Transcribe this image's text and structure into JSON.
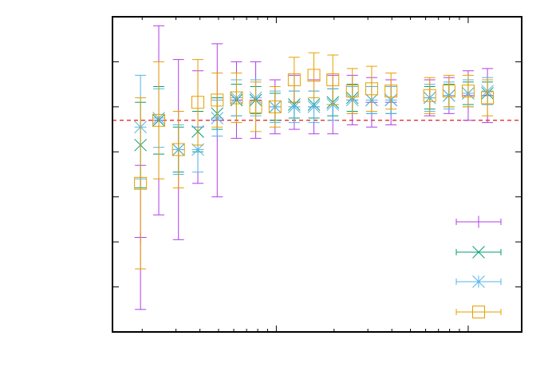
{
  "chart_data": {
    "type": "scatter",
    "title": "",
    "xlabel": "",
    "ylabel": "",
    "xscale": "log",
    "xlim": [
      1.4,
      190
    ],
    "ylim": [
      0,
      7
    ],
    "grid": false,
    "legend": {
      "placement": "bottom-right",
      "show_labels": false
    },
    "reference_line": {
      "y": 4.7,
      "color": "#e41a1c",
      "style": "dashed"
    },
    "series": [
      {
        "marker": "plus",
        "color": "#b03ee8",
        "points": [
          {
            "x": 1.96,
            "y": 2.1,
            "err": 1.6
          },
          {
            "x": 2.44,
            "y": 4.7,
            "err": 2.1
          },
          {
            "x": 3.09,
            "y": 4.05,
            "err": 2.0
          },
          {
            "x": 3.9,
            "y": 4.55,
            "err": 1.25
          },
          {
            "x": 4.92,
            "y": 4.7,
            "err": 1.7
          },
          {
            "x": 6.2,
            "y": 5.15,
            "err": 0.85
          },
          {
            "x": 7.81,
            "y": 5.15,
            "err": 0.85
          },
          {
            "x": 9.85,
            "y": 5.0,
            "err": 0.6
          },
          {
            "x": 12.4,
            "y": 5.1,
            "err": 0.6
          },
          {
            "x": 15.7,
            "y": 5.0,
            "err": 0.6
          },
          {
            "x": 19.7,
            "y": 5.05,
            "err": 0.65
          },
          {
            "x": 24.9,
            "y": 5.15,
            "err": 0.55
          },
          {
            "x": 31.4,
            "y": 5.1,
            "err": 0.55
          },
          {
            "x": 39.6,
            "y": 5.1,
            "err": 0.5
          },
          {
            "x": 63.0,
            "y": 5.2,
            "err": 0.4
          },
          {
            "x": 79.4,
            "y": 5.25,
            "err": 0.4
          },
          {
            "x": 100.0,
            "y": 5.25,
            "err": 0.55
          },
          {
            "x": 126.0,
            "y": 5.25,
            "err": 0.6
          }
        ]
      },
      {
        "marker": "x",
        "color": "#009e73",
        "points": [
          {
            "x": 1.96,
            "y": 4.15,
            "err": 0.95
          },
          {
            "x": 2.44,
            "y": 4.7,
            "err": 0.75
          },
          {
            "x": 3.09,
            "y": 4.05,
            "err": 0.5
          },
          {
            "x": 3.9,
            "y": 4.45,
            "err": 0.45
          },
          {
            "x": 4.92,
            "y": 4.85,
            "err": 0.35
          },
          {
            "x": 6.2,
            "y": 5.15,
            "err": 0.35
          },
          {
            "x": 7.81,
            "y": 5.15,
            "err": 0.3
          },
          {
            "x": 9.85,
            "y": 5.0,
            "err": 0.3
          },
          {
            "x": 12.4,
            "y": 5.05,
            "err": 0.3
          },
          {
            "x": 15.7,
            "y": 5.05,
            "err": 0.3
          },
          {
            "x": 19.7,
            "y": 5.1,
            "err": 0.3
          },
          {
            "x": 24.9,
            "y": 5.2,
            "err": 0.3
          },
          {
            "x": 31.4,
            "y": 5.15,
            "err": 0.3
          },
          {
            "x": 39.6,
            "y": 5.15,
            "err": 0.3
          },
          {
            "x": 63.0,
            "y": 5.2,
            "err": 0.25
          },
          {
            "x": 79.4,
            "y": 5.25,
            "err": 0.25
          },
          {
            "x": 100.0,
            "y": 5.3,
            "err": 0.25
          },
          {
            "x": 126.0,
            "y": 5.3,
            "err": 0.25
          }
        ]
      },
      {
        "marker": "star",
        "color": "#56b4e9",
        "points": [
          {
            "x": 1.96,
            "y": 4.55,
            "err": 1.15
          },
          {
            "x": 2.44,
            "y": 4.75,
            "err": 0.65
          },
          {
            "x": 3.09,
            "y": 4.05,
            "err": 0.55
          },
          {
            "x": 3.9,
            "y": 4.05,
            "err": 0.5
          },
          {
            "x": 4.92,
            "y": 4.75,
            "err": 0.4
          },
          {
            "x": 6.2,
            "y": 5.2,
            "err": 0.4
          },
          {
            "x": 7.81,
            "y": 5.2,
            "err": 0.4
          },
          {
            "x": 9.85,
            "y": 5.0,
            "err": 0.35
          },
          {
            "x": 12.4,
            "y": 5.0,
            "err": 0.35
          },
          {
            "x": 15.7,
            "y": 5.0,
            "err": 0.35
          },
          {
            "x": 19.7,
            "y": 5.05,
            "err": 0.35
          },
          {
            "x": 24.9,
            "y": 5.15,
            "err": 0.3
          },
          {
            "x": 31.4,
            "y": 5.15,
            "err": 0.3
          },
          {
            "x": 39.6,
            "y": 5.15,
            "err": 0.3
          },
          {
            "x": 63.0,
            "y": 5.2,
            "err": 0.3
          },
          {
            "x": 79.4,
            "y": 5.25,
            "err": 0.3
          },
          {
            "x": 100.0,
            "y": 5.3,
            "err": 0.3
          },
          {
            "x": 126.0,
            "y": 5.35,
            "err": 0.3
          }
        ]
      },
      {
        "marker": "square",
        "color": "#e69f00",
        "points": [
          {
            "x": 1.96,
            "y": 3.3,
            "err": 1.9
          },
          {
            "x": 2.44,
            "y": 4.7,
            "err": 1.3
          },
          {
            "x": 3.09,
            "y": 4.05,
            "err": 0.85
          },
          {
            "x": 3.9,
            "y": 5.1,
            "err": 0.95
          },
          {
            "x": 4.92,
            "y": 5.15,
            "err": 0.6
          },
          {
            "x": 6.2,
            "y": 5.2,
            "err": 0.55
          },
          {
            "x": 7.81,
            "y": 5.0,
            "err": 0.55
          },
          {
            "x": 9.85,
            "y": 5.0,
            "err": 0.45
          },
          {
            "x": 12.4,
            "y": 5.6,
            "err": 0.5
          },
          {
            "x": 15.7,
            "y": 5.7,
            "err": 0.5
          },
          {
            "x": 19.7,
            "y": 5.6,
            "err": 0.55
          },
          {
            "x": 24.9,
            "y": 5.35,
            "err": 0.5
          },
          {
            "x": 31.4,
            "y": 5.4,
            "err": 0.5
          },
          {
            "x": 39.6,
            "y": 5.35,
            "err": 0.4
          },
          {
            "x": 63.0,
            "y": 5.25,
            "err": 0.4
          },
          {
            "x": 79.4,
            "y": 5.35,
            "err": 0.35
          },
          {
            "x": 100.0,
            "y": 5.35,
            "err": 0.35
          },
          {
            "x": 126.0,
            "y": 5.2,
            "err": 0.4
          }
        ]
      }
    ]
  }
}
